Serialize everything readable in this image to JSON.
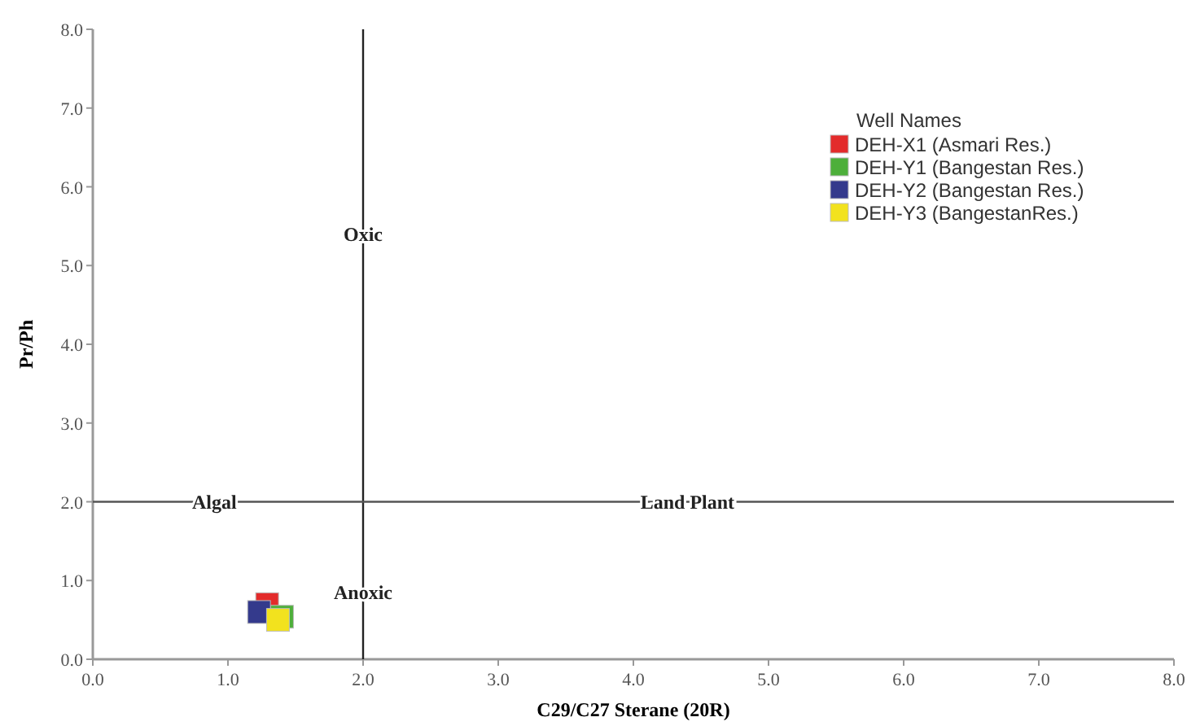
{
  "chart_data": {
    "type": "scatter",
    "xlabel": "C29/C27 Sterane (20R)",
    "ylabel": "Pr/Ph",
    "legend_title": "Well Names",
    "legend": "top right",
    "marker": "square",
    "grid": false,
    "xlim": [
      0,
      8
    ],
    "ylim": [
      0,
      8
    ],
    "xticks": [
      {
        "value": 0,
        "label": "0.0"
      },
      {
        "value": 1,
        "label": "1.0"
      },
      {
        "value": 2,
        "label": "2.0"
      },
      {
        "value": 3,
        "label": "3.0"
      },
      {
        "value": 4,
        "label": "4.0"
      },
      {
        "value": 5,
        "label": "5.0"
      },
      {
        "value": 6,
        "label": "6.0"
      },
      {
        "value": 7,
        "label": "7.0"
      },
      {
        "value": 8,
        "label": "8.0"
      }
    ],
    "yticks": [
      {
        "value": 0,
        "label": "0.0"
      },
      {
        "value": 1,
        "label": "1.0"
      },
      {
        "value": 2,
        "label": "2.0"
      },
      {
        "value": 3,
        "label": "3.0"
      },
      {
        "value": 4,
        "label": "4.0"
      },
      {
        "value": 5,
        "label": "5.0"
      },
      {
        "value": 6,
        "label": "6.0"
      },
      {
        "value": 7,
        "label": "7.0"
      },
      {
        "value": 8,
        "label": "8.0"
      }
    ],
    "series": [
      {
        "name": "DEH-X1 (Asmari Res.)",
        "color": "#e32b2b",
        "x": [
          1.29
        ],
        "values": [
          0.7
        ]
      },
      {
        "name": "DEH-Y1 (Bangestan Res.)",
        "color": "#4daf3a",
        "x": [
          1.4
        ],
        "values": [
          0.54
        ]
      },
      {
        "name": "DEH-Y2 (Bangestan Res.)",
        "color": "#343a8c",
        "x": [
          1.23
        ],
        "values": [
          0.6
        ]
      },
      {
        "name": "DEH-Y3 (BangestanRes.)",
        "color": "#f2e21e",
        "x": [
          1.37
        ],
        "values": [
          0.5
        ]
      }
    ],
    "ref_lines": [
      {
        "axis": "x",
        "value": 2,
        "color": "#222222"
      },
      {
        "axis": "y",
        "value": 2,
        "color": "#555555"
      }
    ],
    "annotations": [
      {
        "text": "Oxic",
        "x": 2.0,
        "y": 5.4
      },
      {
        "text": "Algal",
        "x": 0.9,
        "y": 2.0
      },
      {
        "text": "Land Plant",
        "x": 4.4,
        "y": 2.0
      },
      {
        "text": "Anoxic",
        "x": 2.0,
        "y": 0.85
      }
    ]
  }
}
